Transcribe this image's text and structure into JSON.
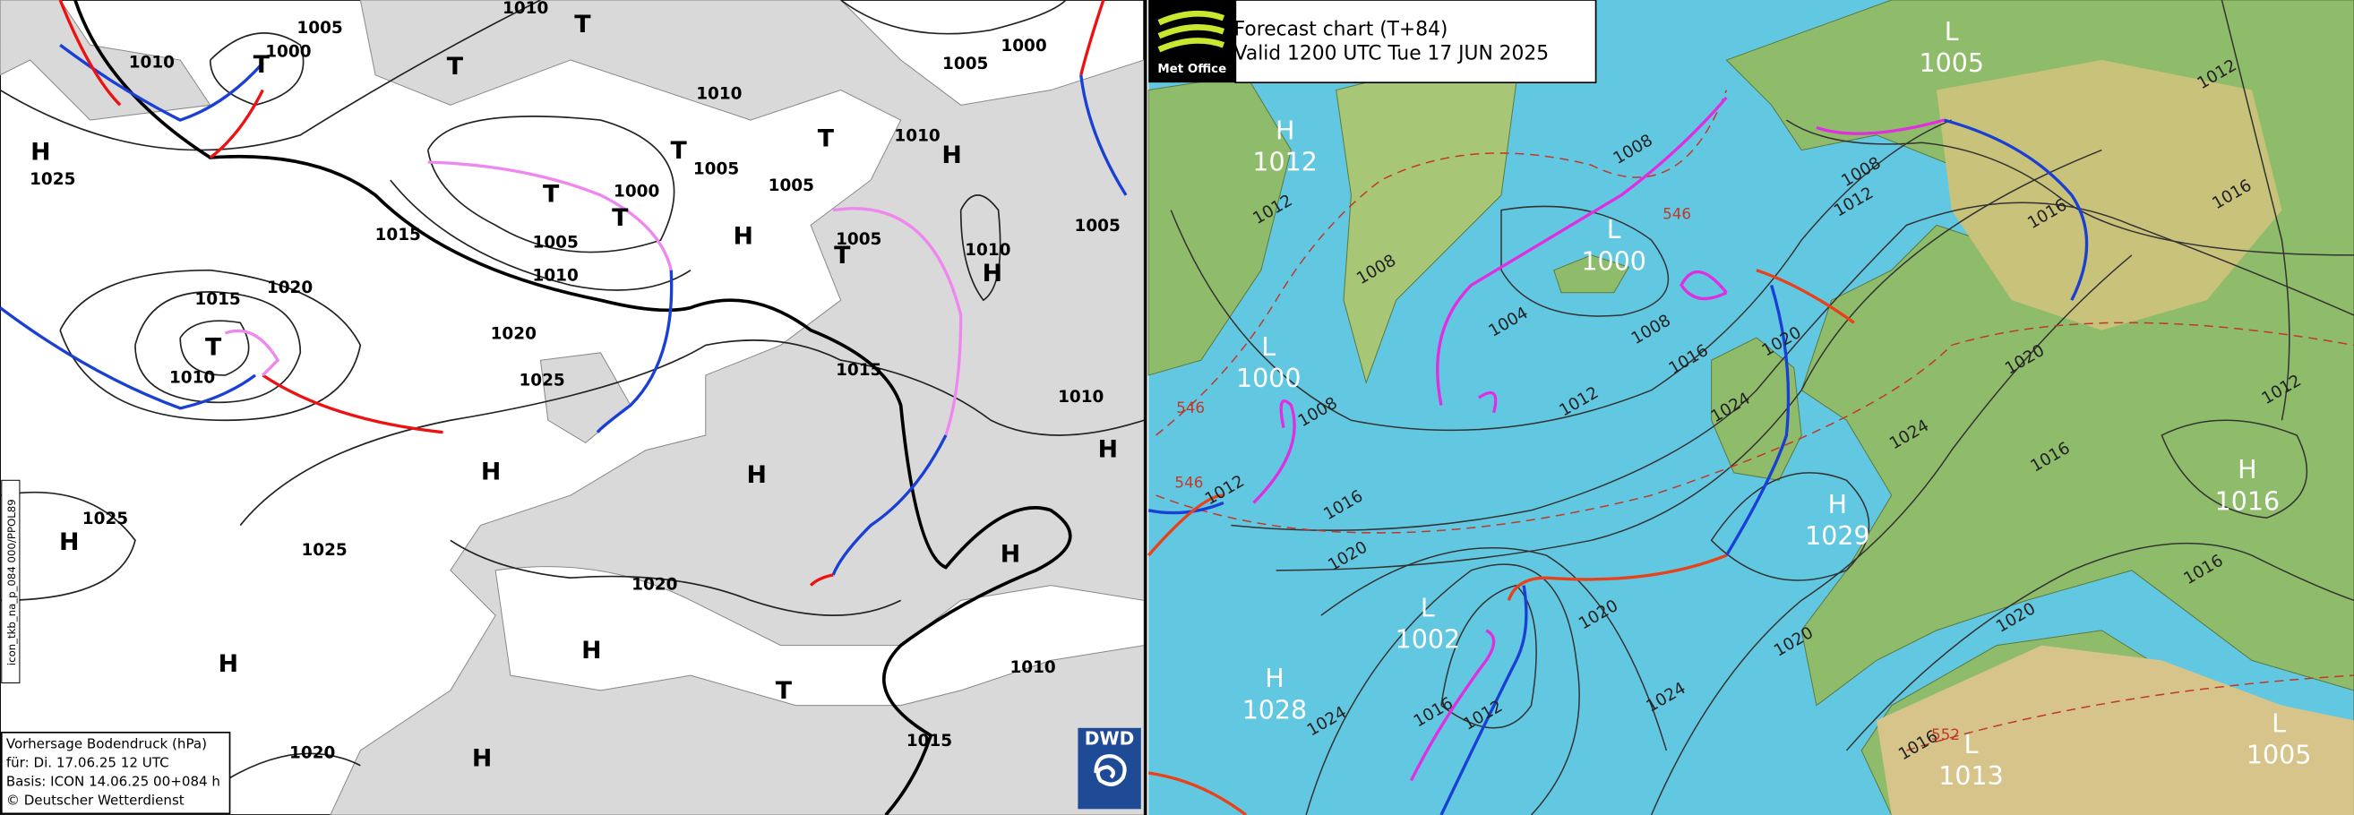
{
  "left_map": {
    "info": [
      "Vorhersage Bodendruck (hPa)",
      "für:  Di. 17.06.25  12 UTC",
      "Basis: ICON  14.06.25 00+084 h",
      "© Deutscher Wetterdienst"
    ],
    "side_label": "icon_tkb_na_p_084 000/PPOL89",
    "logo": "DWD",
    "centers": [
      "H",
      "T",
      "T",
      "T",
      "T",
      "T",
      "T",
      "H",
      "T",
      "H",
      "T",
      "H",
      "T",
      "H",
      "H",
      "H",
      "H",
      "H",
      "H",
      "H",
      "T",
      "H"
    ],
    "isobar_labels": [
      "1005",
      "1010",
      "1010",
      "1000",
      "1025",
      "1010",
      "1005",
      "1000",
      "1010",
      "1005",
      "1005",
      "1000",
      "1015",
      "1005",
      "1010",
      "1005",
      "1010",
      "1005",
      "1015",
      "1020",
      "1020",
      "1010",
      "1025",
      "1015",
      "1010",
      "1025",
      "1025",
      "1020",
      "1010",
      "1015",
      "1020"
    ]
  },
  "right_map": {
    "logo": "Met Office",
    "title": "Forecast chart (T+84)",
    "valid": "Valid 1200 UTC Tue 17 JUN 2025",
    "centers": [
      {
        "type": "L",
        "pressure": "1005"
      },
      {
        "type": "H",
        "pressure": "1012"
      },
      {
        "type": "L",
        "pressure": "1000"
      },
      {
        "type": "L",
        "pressure": "1000"
      },
      {
        "type": "H",
        "pressure": "1029"
      },
      {
        "type": "H",
        "pressure": "1016"
      },
      {
        "type": "L",
        "pressure": "1002"
      },
      {
        "type": "H",
        "pressure": "1028"
      },
      {
        "type": "L",
        "pressure": "1013"
      },
      {
        "type": "L",
        "pressure": "1005"
      }
    ],
    "isobar_labels": [
      "1008",
      "1008",
      "1012",
      "1016",
      "1012",
      "1016",
      "1012",
      "1008",
      "1004",
      "1008",
      "1016",
      "1020",
      "1024",
      "1012",
      "1008",
      "1012",
      "1016",
      "1020",
      "1024",
      "1020",
      "1012",
      "1016",
      "1016",
      "1020",
      "1020",
      "1020",
      "1024",
      "1024",
      "1016",
      "1012",
      "1016"
    ],
    "thickness_labels": [
      "546",
      "546",
      "546",
      "552"
    ]
  }
}
